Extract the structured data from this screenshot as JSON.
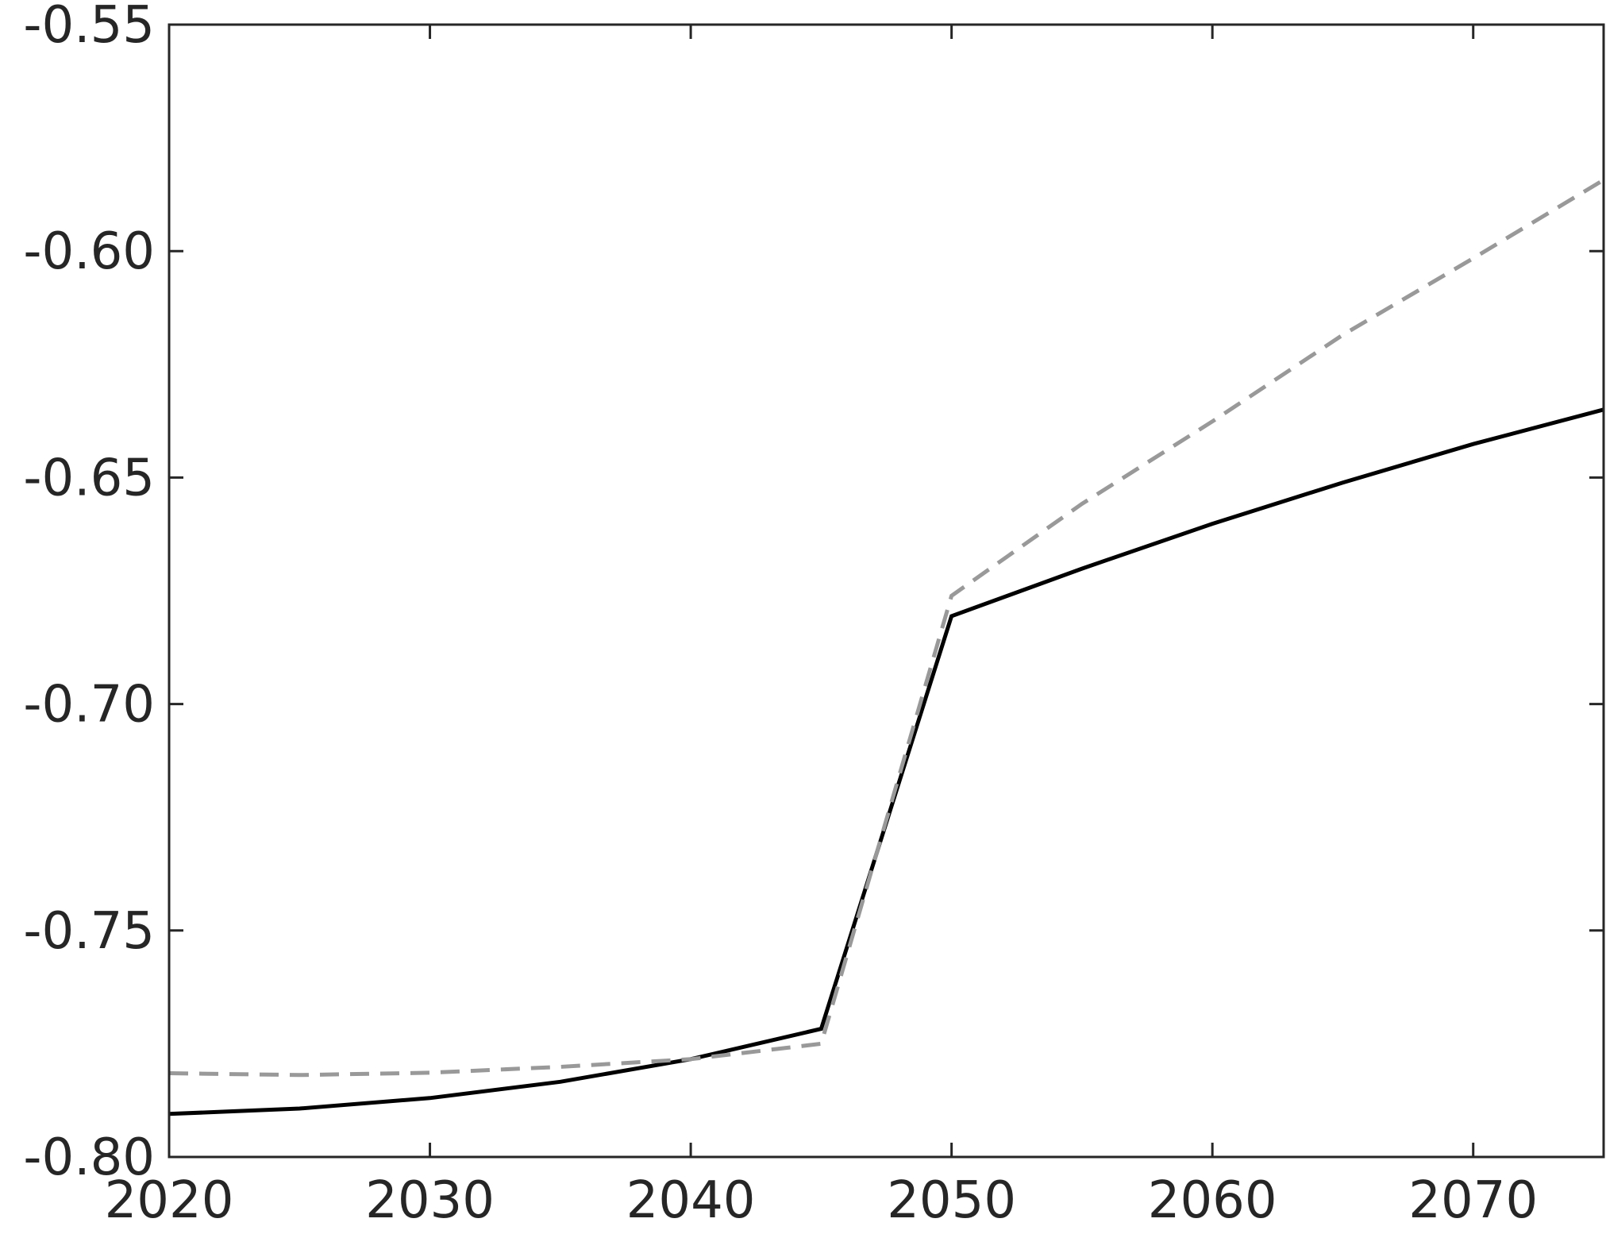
{
  "chart_data": {
    "type": "line",
    "title": "",
    "xlabel": "",
    "ylabel": "",
    "xlim": [
      2020,
      2075
    ],
    "ylim": [
      -0.8,
      -0.55
    ],
    "grid": false,
    "x_ticks": [
      2020,
      2030,
      2040,
      2050,
      2060,
      2070
    ],
    "x_tick_labels": [
      "2020",
      "2030",
      "2040",
      "2050",
      "2060",
      "2070"
    ],
    "y_ticks": [
      -0.8,
      -0.75,
      -0.7,
      -0.65,
      -0.6,
      -0.55
    ],
    "y_tick_labels": [
      "-0.80",
      "-0.75",
      "-0.70",
      "-0.65",
      "-0.60",
      "-0.55"
    ],
    "x": [
      2020,
      2025,
      2030,
      2035,
      2040,
      2045,
      2050,
      2055,
      2060,
      2065,
      2070,
      2075
    ],
    "series": [
      {
        "values": [
          -0.7905,
          -0.7893,
          -0.787,
          -0.7834,
          -0.7784,
          -0.7717,
          -0.6806,
          -0.6701,
          -0.6602,
          -0.6511,
          -0.6426,
          -0.635
        ],
        "color": "#000000",
        "style": "solid"
      },
      {
        "values": [
          -0.7815,
          -0.7819,
          -0.7814,
          -0.7801,
          -0.7784,
          -0.775,
          -0.6761,
          -0.6558,
          -0.6376,
          -0.6185,
          -0.6016,
          -0.5843
        ],
        "color": "#999999",
        "style": "dashed"
      }
    ]
  }
}
